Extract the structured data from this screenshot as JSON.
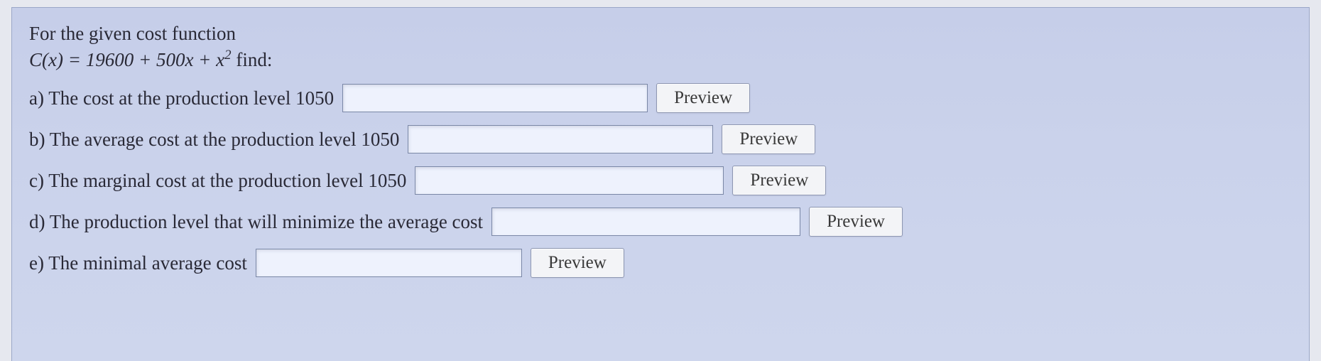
{
  "intro": {
    "line1": "For the given cost function",
    "func_lhs": "C(x)",
    "equals": " = ",
    "rhs_plain": "19600 + 500x + x",
    "exp": "2",
    "trailing": " find:"
  },
  "rows": {
    "a": {
      "label": "a) The cost at the production level 1050",
      "input_width": 430,
      "btn": "Preview"
    },
    "b": {
      "label": "b) The average cost at the production level 1050",
      "input_width": 430,
      "btn": "Preview"
    },
    "c": {
      "label": "c) The marginal cost at the production level 1050",
      "input_width": 435,
      "btn": "Preview"
    },
    "d": {
      "label": "d) The production level that will minimize the average cost",
      "input_width": 435,
      "btn": "Preview"
    },
    "e": {
      "label": "e) The minimal average cost",
      "input_width": 375,
      "btn": "Preview"
    }
  },
  "colors": {
    "panel_bg_top": "#c4cce8",
    "panel_bg_bot": "#ccd4ec",
    "border": "#9aa6c8",
    "text": "#2b2b38",
    "input_bg": "#ecf0fb",
    "btn_bg": "#f1f2f5"
  }
}
